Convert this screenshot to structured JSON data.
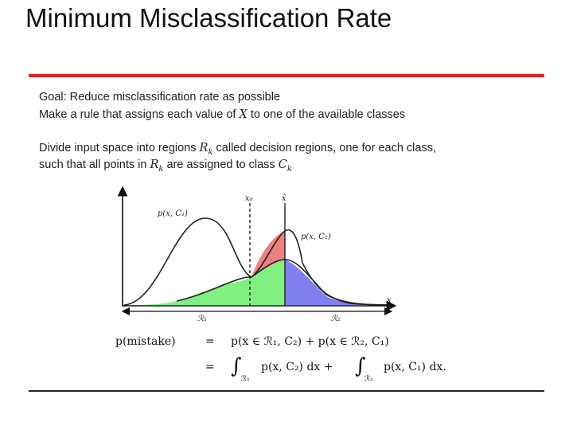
{
  "slide": {
    "title": "Minimum Misclassification Rate"
  },
  "text": {
    "line1": "Goal: Reduce misclassification rate as possible",
    "line2_pre": "Make a rule that assigns each value of ",
    "line2_var": "X",
    "line2_post": " to one of the available classes",
    "line3_pre": "Divide input space into regions ",
    "line3_var": "R",
    "line3_sub": "k",
    "line3_post": " called decision regions, one for each class,",
    "line4_pre": "such that all points in ",
    "line4_var": "R",
    "line4_sub": "k",
    "line4_mid": " are assigned to class ",
    "line4_var2": "C",
    "line4_sub2": "k"
  },
  "figure": {
    "label_pc1": "p(x, C₁)",
    "label_pc2": "p(x, C₂)",
    "label_x0": "x₀",
    "label_xhat": "x̂",
    "label_x": "x",
    "label_r1": "ℛ₁",
    "label_r2": "ℛ₂",
    "colors": {
      "red_region": "#f08080",
      "green_region": "#80f080",
      "blue_region": "#8080f0"
    }
  },
  "equation": {
    "lhs": "p(mistake)",
    "eq1": "=",
    "rhs1": "p(x ∈ ℛ₁, C₂) + p(x ∈ ℛ₂, C₁)",
    "eq2": "=",
    "int1": "∫",
    "sub1": "ℛ₁",
    "integrand1": "p(x, C₂) dx +",
    "int2": "∫",
    "sub2": "ℛ₂",
    "integrand2": "p(x, C₁) dx."
  }
}
